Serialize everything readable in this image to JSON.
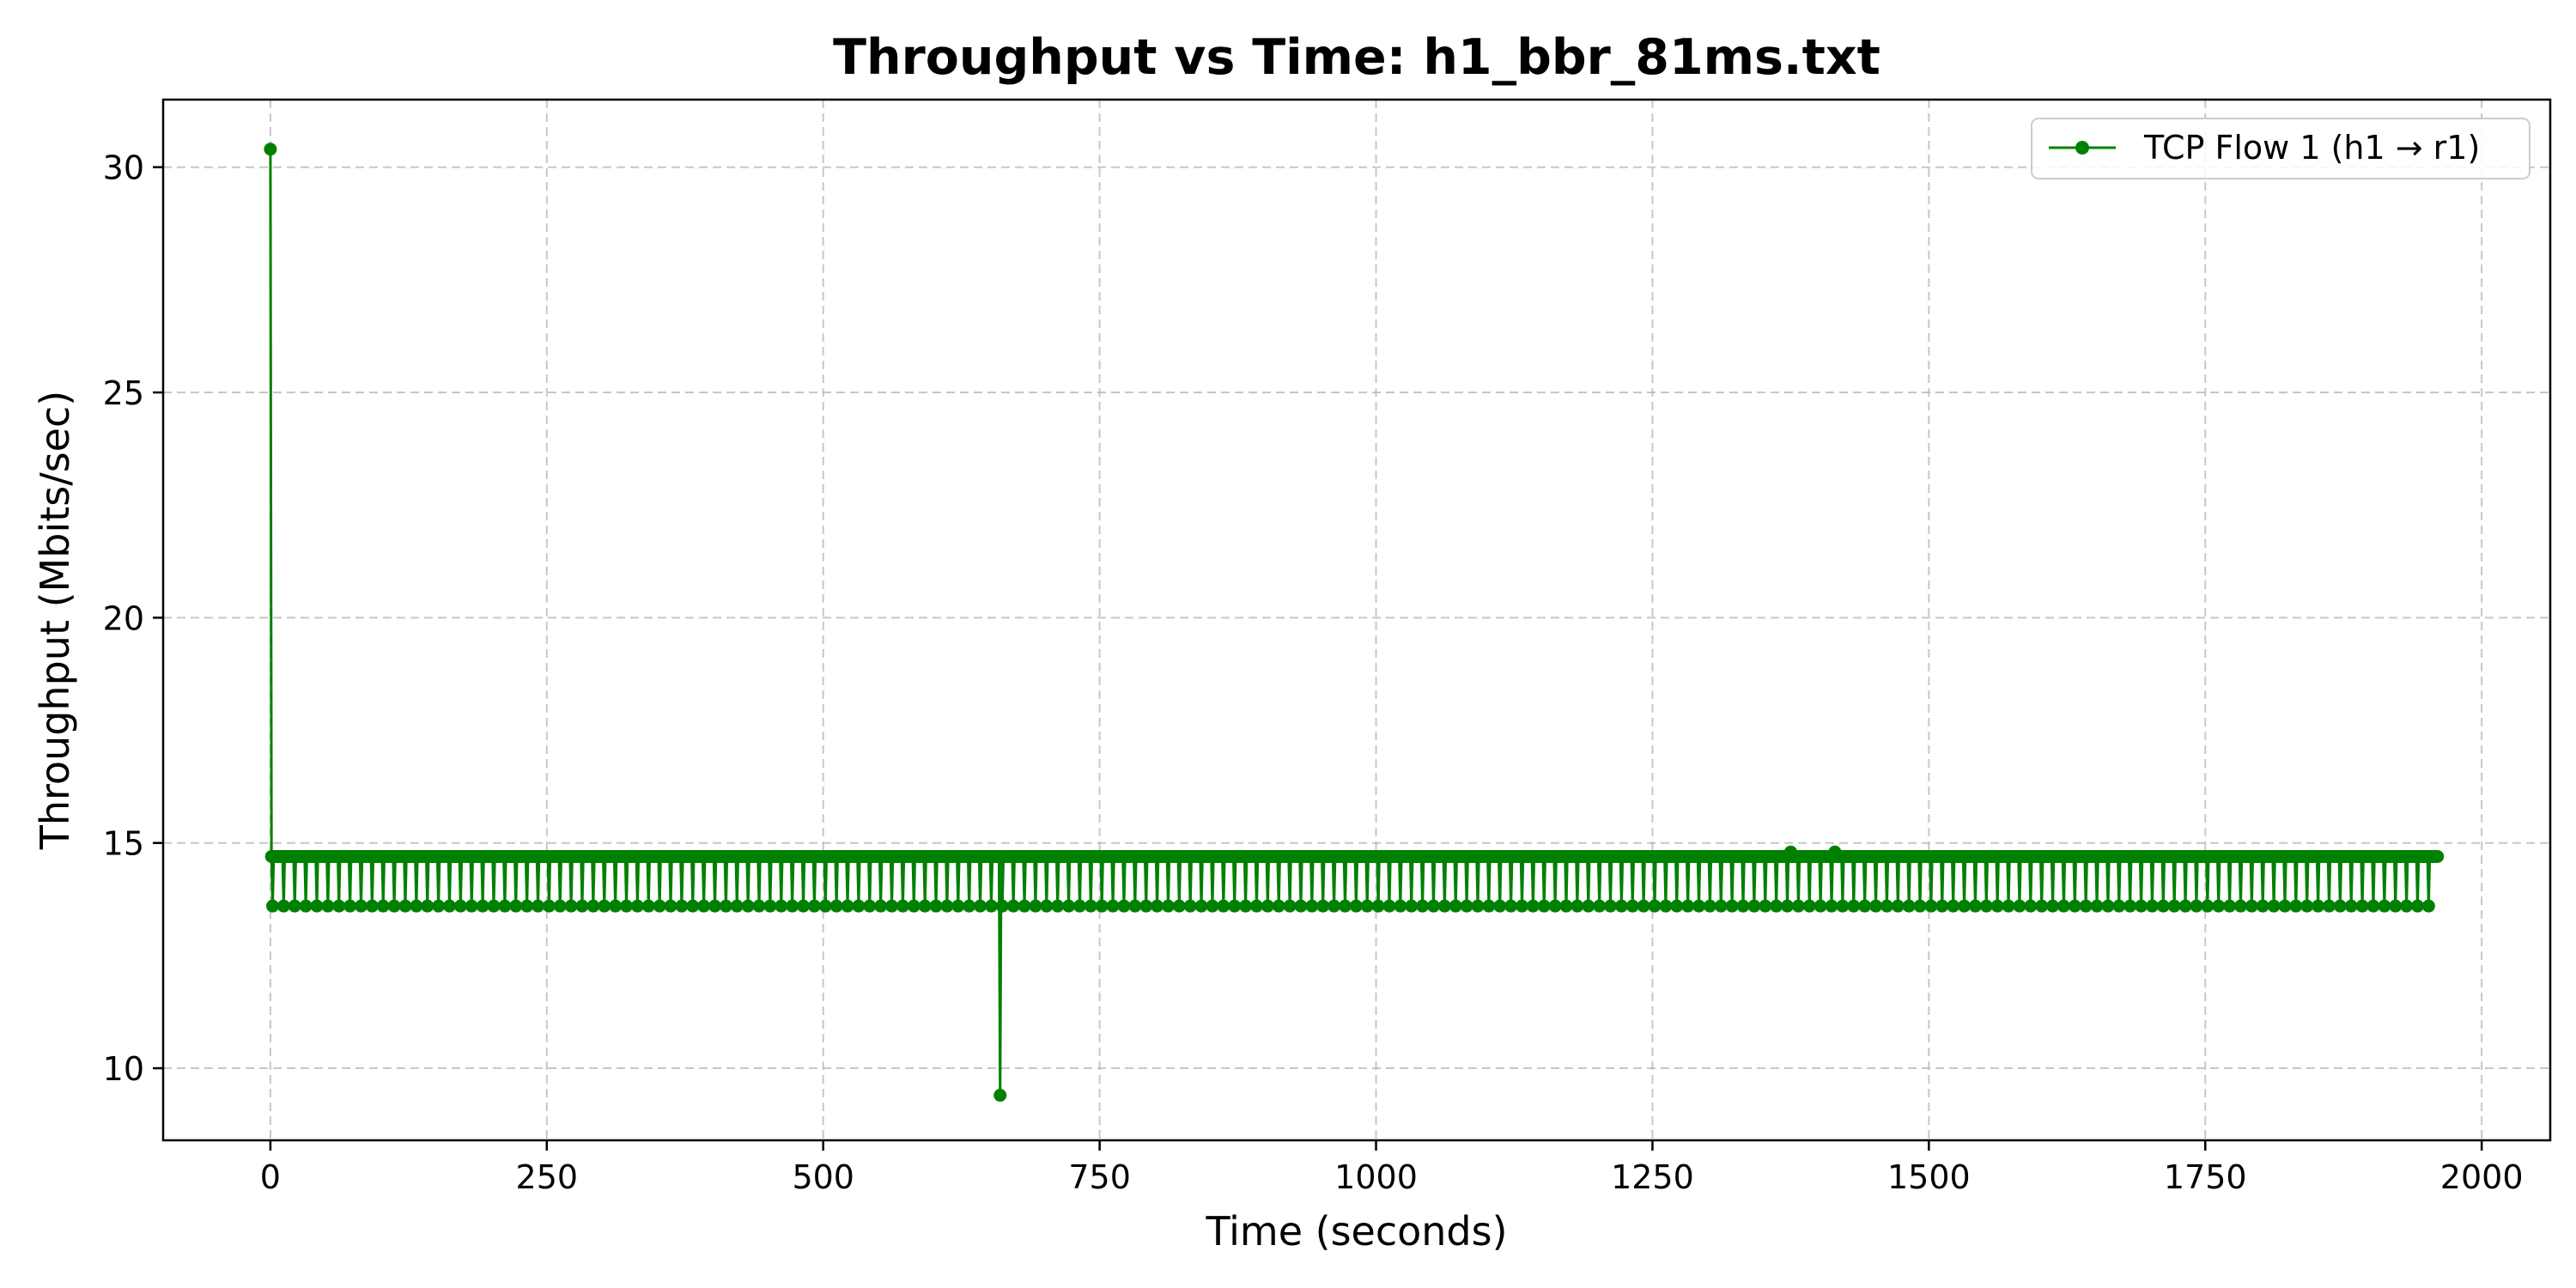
{
  "chart_data": {
    "type": "line",
    "title": "Throughput vs Time: h1_bbr_81ms.txt",
    "xlabel": "Time (seconds)",
    "ylabel": "Throughput (Mbits/sec)",
    "xlim": [
      -97,
      2062
    ],
    "ylim": [
      8.4,
      31.5
    ],
    "xticks": [
      0,
      250,
      500,
      750,
      1000,
      1250,
      1500,
      1750,
      2000
    ],
    "yticks": [
      10,
      15,
      20,
      25,
      30
    ],
    "grid": true,
    "legend_position": "top-right",
    "series": [
      {
        "name": "TCP Flow 1 (h1 → r1)",
        "color": "#008000",
        "marker": "circle",
        "pattern": {
          "first_point": [
            0,
            30.4
          ],
          "interval_seconds": 1,
          "baseline_value": 14.7,
          "dip_value": 13.6,
          "dip_period_seconds": 10,
          "dip_offset_seconds": 2,
          "end_time": 1960,
          "outliers": [
            [
              660,
              9.4
            ],
            [
              1375,
              14.8
            ],
            [
              1415,
              14.8
            ]
          ]
        }
      }
    ]
  }
}
